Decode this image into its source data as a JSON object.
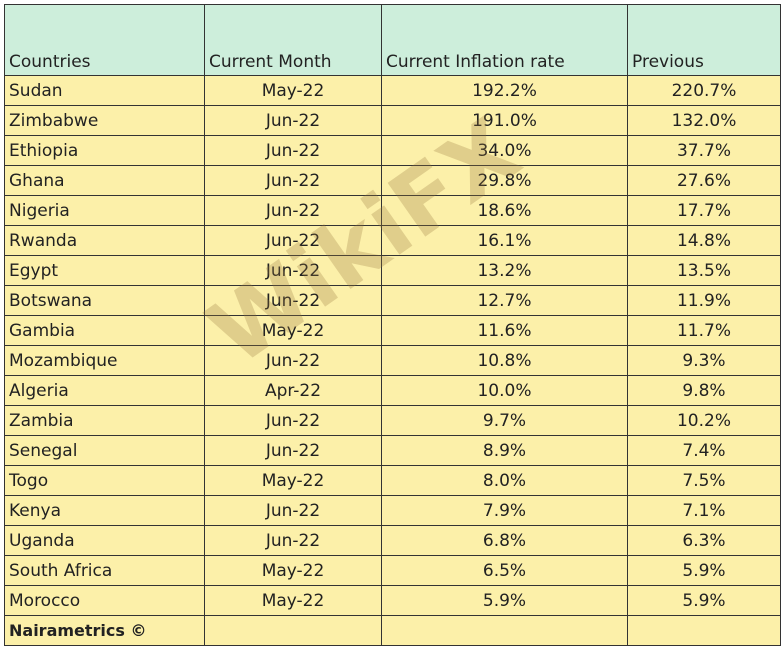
{
  "table": {
    "header": [
      "Countries",
      "Current Month",
      "Current Inflation rate",
      "Previous"
    ],
    "rows": [
      [
        "Sudan",
        "May-22",
        "192.2%",
        "220.7%"
      ],
      [
        "Zimbabwe",
        "Jun-22",
        "191.0%",
        "132.0%"
      ],
      [
        "Ethiopia",
        "Jun-22",
        "34.0%",
        "37.7%"
      ],
      [
        "Ghana",
        "Jun-22",
        "29.8%",
        "27.6%"
      ],
      [
        "Nigeria",
        "Jun-22",
        "18.6%",
        "17.7%"
      ],
      [
        "Rwanda",
        "Jun-22",
        "16.1%",
        "14.8%"
      ],
      [
        "Egypt",
        "Jun-22",
        "13.2%",
        "13.5%"
      ],
      [
        "Botswana",
        "Jun-22",
        "12.7%",
        "11.9%"
      ],
      [
        "Gambia",
        "May-22",
        "11.6%",
        "11.7%"
      ],
      [
        "Mozambique",
        "Jun-22",
        "10.8%",
        "9.3%"
      ],
      [
        "Algeria",
        "Apr-22",
        "10.0%",
        "9.8%"
      ],
      [
        "Zambia",
        "Jun-22",
        "9.7%",
        "10.2%"
      ],
      [
        "Senegal",
        "Jun-22",
        "8.9%",
        "7.4%"
      ],
      [
        "Togo",
        "May-22",
        "8.0%",
        "7.5%"
      ],
      [
        "Kenya",
        "Jun-22",
        "7.9%",
        "7.1%"
      ],
      [
        "Uganda",
        "Jun-22",
        "6.8%",
        "6.3%"
      ],
      [
        "South Africa",
        "May-22",
        "6.5%",
        "5.9%"
      ],
      [
        "Morocco",
        "May-22",
        "5.9%",
        "5.9%"
      ]
    ],
    "footer": "Nairametrics ©"
  },
  "watermark": "WikiFX"
}
